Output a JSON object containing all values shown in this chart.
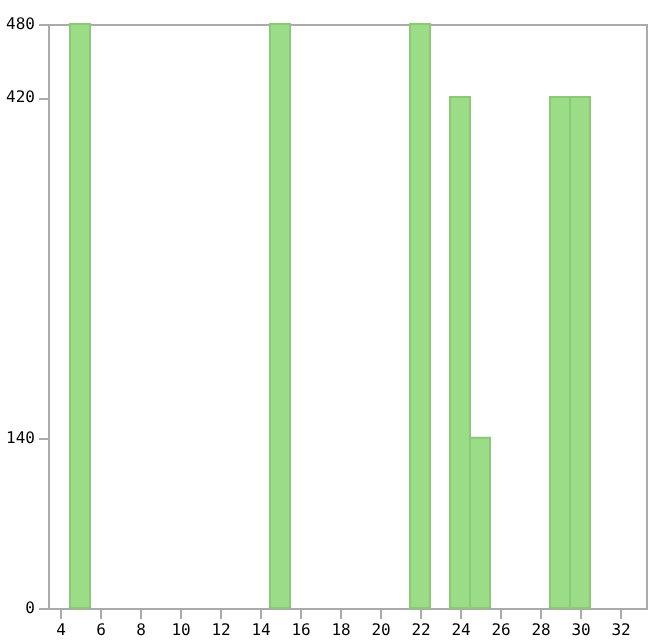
{
  "chart_data": {
    "type": "bar",
    "x": [
      5,
      15,
      22,
      24,
      25,
      29,
      30
    ],
    "values": [
      480,
      480,
      480,
      420,
      140,
      420,
      420
    ],
    "color": "#9bdc87",
    "xlim": [
      3.4,
      33.3
    ],
    "xticks": [
      4,
      6,
      8,
      10,
      12,
      14,
      16,
      18,
      20,
      22,
      24,
      26,
      28,
      30,
      32
    ],
    "ylim": [
      0,
      480
    ],
    "yticks": [
      0,
      140,
      420,
      480
    ],
    "grid": false
  }
}
